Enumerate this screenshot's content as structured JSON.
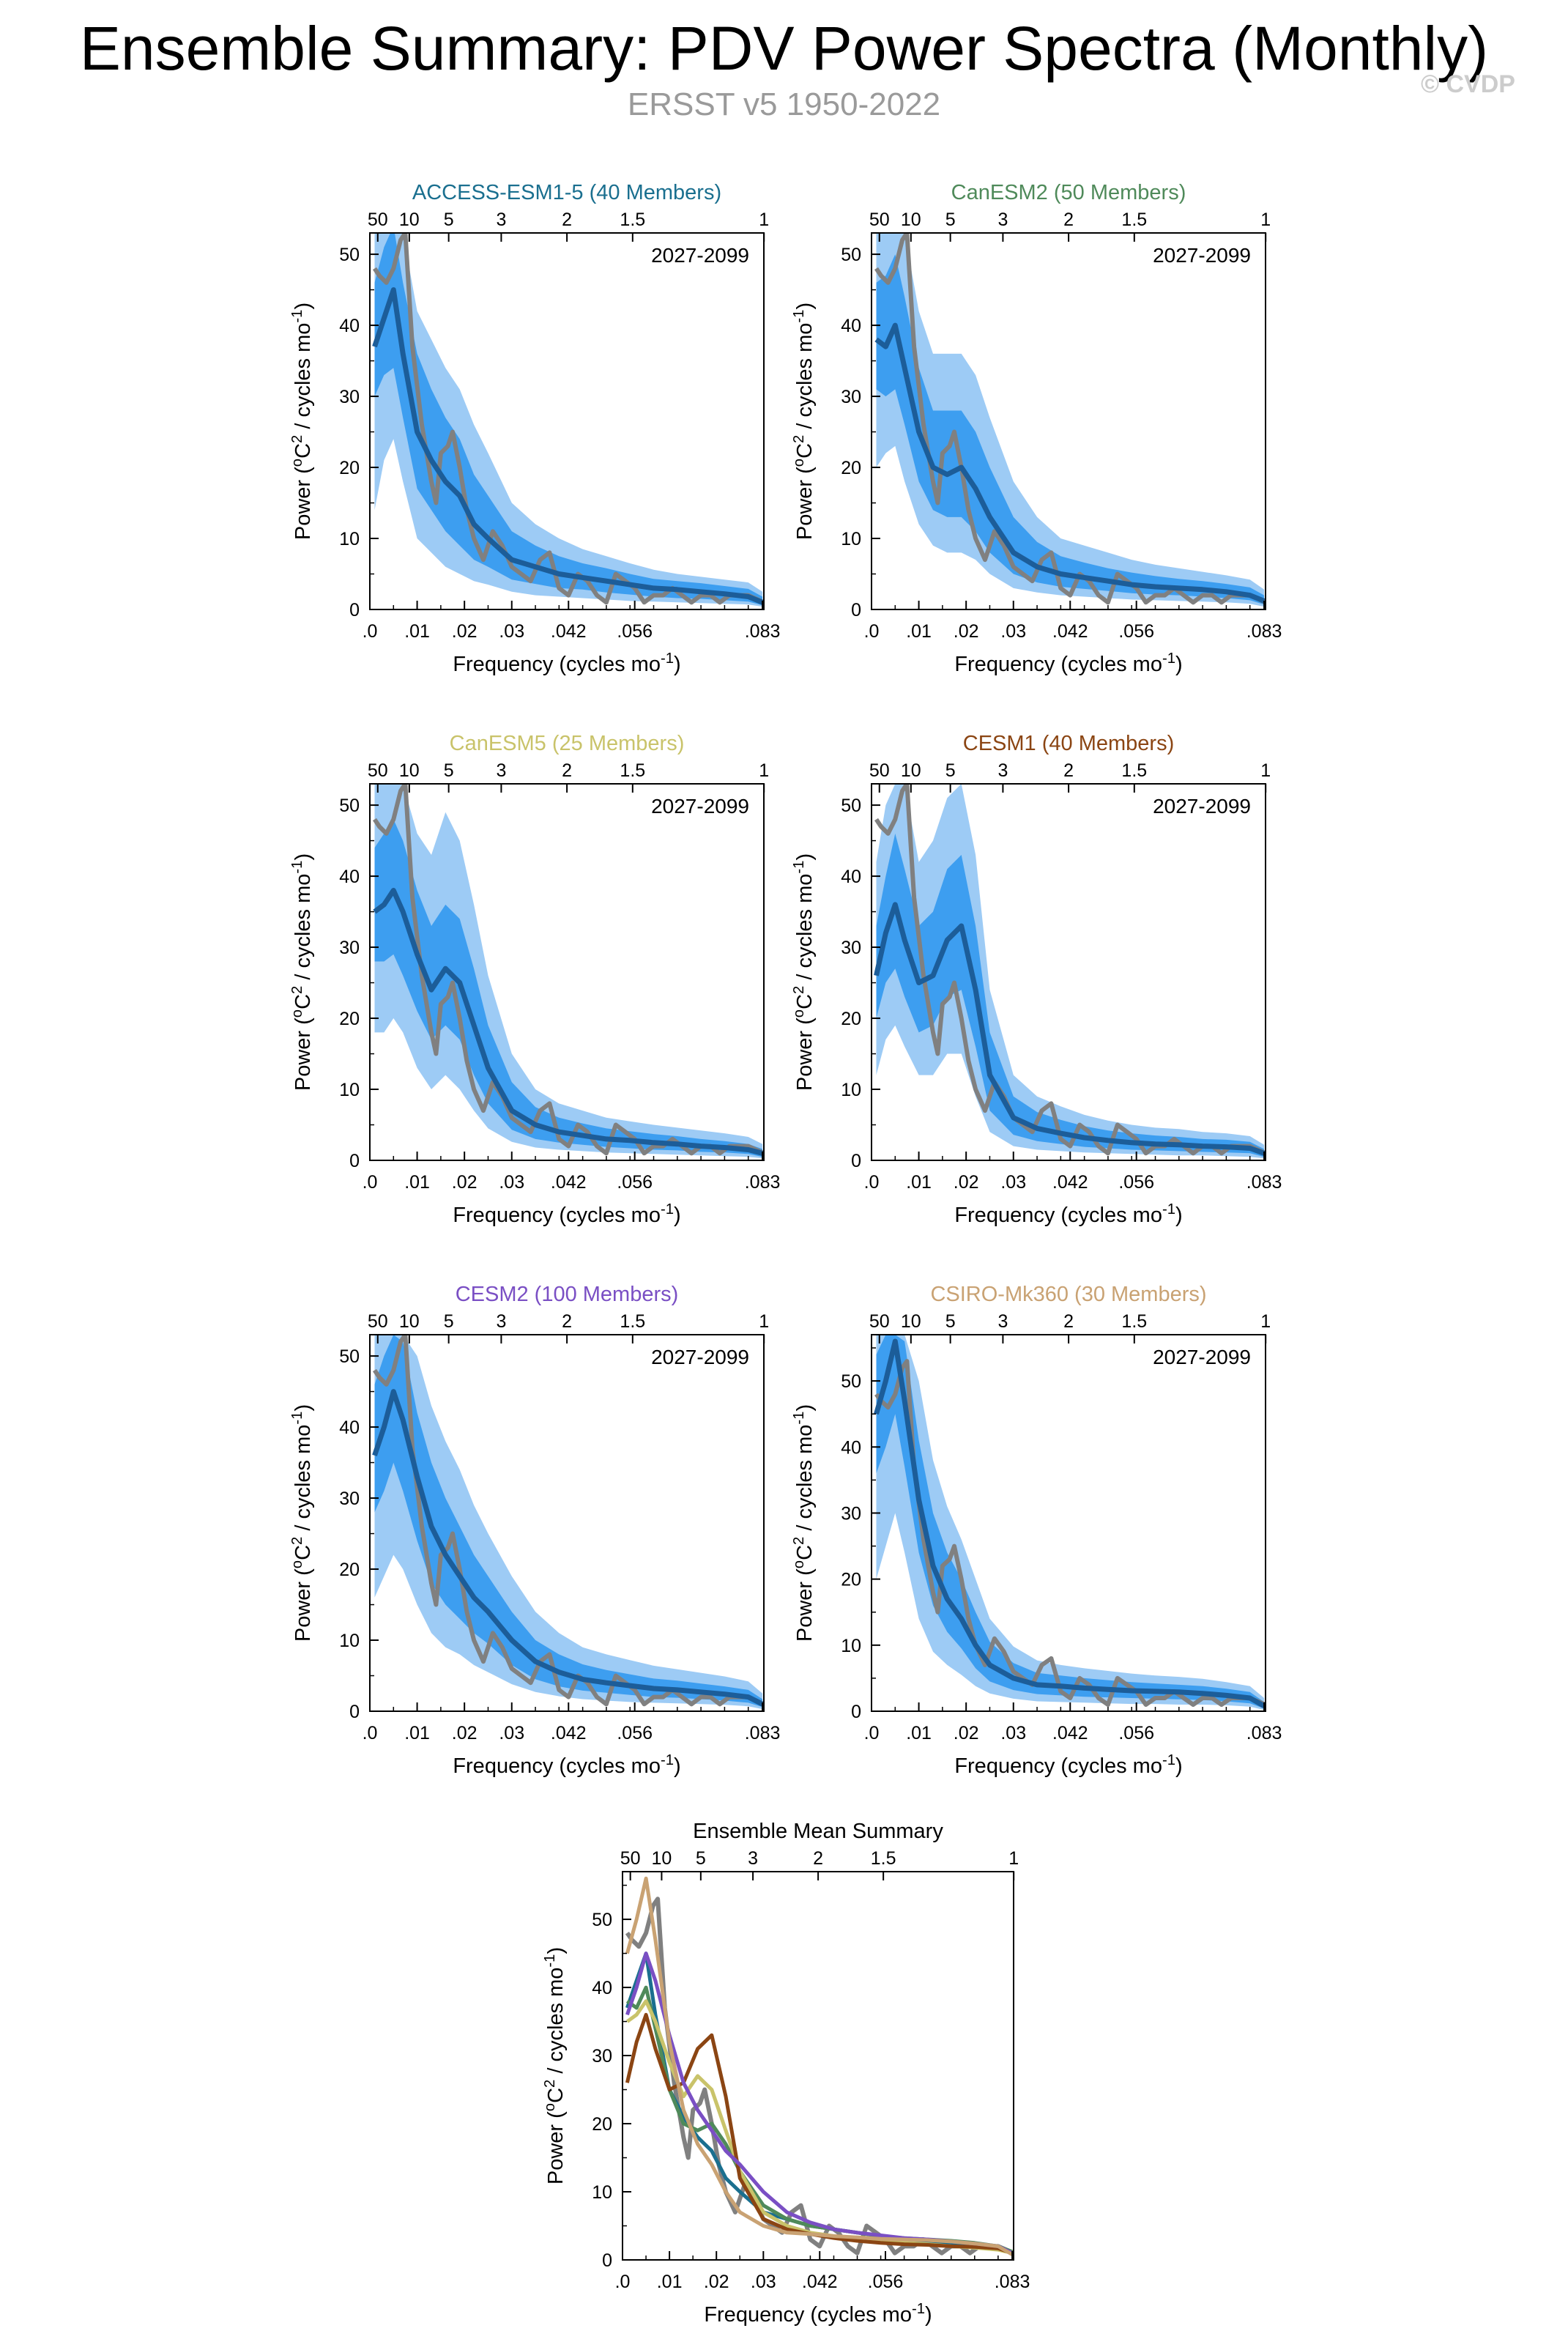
{
  "page": {
    "title": "Ensemble Summary: PDV Power Spectra (Monthly)",
    "subtitle": "ERSST v5 1950-2022",
    "watermark": "© CVDP"
  },
  "colors": {
    "outer_band": "#9dcbf5",
    "inner_band": "#3d9ef0",
    "ensemble_mean": "#1c5d99",
    "observations": "#808080"
  },
  "chart_data": [
    {
      "type": "line",
      "title": "ACCESS-ESM1-5 (40 Members)",
      "title_color": "#1a6f8f",
      "period_label": "2027-2099",
      "xlabel": "Frequency (cycles mo⁻¹)",
      "ylabel": "Power (°C² / cycles mo⁻¹)",
      "xlim": [
        0,
        0.0833
      ],
      "ylim": [
        0,
        53
      ],
      "x_ticks": [
        0,
        0.01,
        0.02,
        0.03,
        0.042,
        0.056,
        0.083
      ],
      "x_tick_labels": [
        ".0",
        ".01",
        ".02",
        ".03",
        ".042",
        ".056",
        ".083"
      ],
      "y_ticks": [
        0,
        10,
        20,
        30,
        40,
        50
      ],
      "top_ticks": [
        50,
        10,
        5,
        3,
        2,
        1.5,
        1
      ],
      "top_tick_labels": [
        "50",
        "10",
        "5",
        "3",
        "2",
        "1.5",
        "1"
      ],
      "x": [
        0.001,
        0.003,
        0.005,
        0.007,
        0.01,
        0.013,
        0.016,
        0.019,
        0.022,
        0.025,
        0.03,
        0.035,
        0.04,
        0.045,
        0.05,
        0.055,
        0.06,
        0.065,
        0.07,
        0.075,
        0.08,
        0.083
      ],
      "mean": [
        37,
        41,
        45,
        36,
        25,
        21,
        18,
        16,
        12,
        10,
        7,
        6,
        5,
        4.5,
        4,
        3.5,
        3,
        2.8,
        2.5,
        2.2,
        1.8,
        1
      ],
      "inner_lo": [
        30,
        33,
        34,
        27,
        17,
        14,
        11,
        9,
        7,
        6,
        4.2,
        3.6,
        3,
        2.8,
        2.4,
        2.1,
        1.8,
        1.6,
        1.5,
        1.3,
        1.1,
        0.6
      ],
      "inner_hi": [
        46,
        51,
        54,
        46,
        36,
        31,
        27,
        24,
        19,
        16,
        11,
        9,
        7.5,
        6.5,
        5.8,
        5,
        4.3,
        4,
        3.7,
        3.3,
        2.9,
        1.8
      ],
      "outer_lo": [
        14,
        21,
        24,
        18,
        10,
        8,
        6,
        5,
        4,
        3.5,
        2.5,
        2,
        1.8,
        1.6,
        1.4,
        1.2,
        1.1,
        1,
        0.9,
        0.8,
        0.7,
        0.4
      ],
      "outer_hi": [
        53,
        53,
        53,
        53,
        42,
        38,
        34,
        31,
        26,
        22,
        15,
        12,
        10,
        8.5,
        7.5,
        6.5,
        5.6,
        5,
        4.6,
        4.2,
        3.8,
        2.5
      ]
    },
    {
      "type": "line",
      "title": "CanESM2 (50 Members)",
      "title_color": "#4f8a5a",
      "period_label": "2027-2099",
      "xlabel": "Frequency (cycles mo⁻¹)",
      "ylabel": "Power (°C² / cycles mo⁻¹)",
      "xlim": [
        0,
        0.0833
      ],
      "ylim": [
        0,
        53
      ],
      "x_ticks": [
        0,
        0.01,
        0.02,
        0.03,
        0.042,
        0.056,
        0.083
      ],
      "x_tick_labels": [
        ".0",
        ".01",
        ".02",
        ".03",
        ".042",
        ".056",
        ".083"
      ],
      "y_ticks": [
        0,
        10,
        20,
        30,
        40,
        50
      ],
      "top_ticks": [
        50,
        10,
        5,
        3,
        2,
        1.5,
        1
      ],
      "top_tick_labels": [
        "50",
        "10",
        "5",
        "3",
        "2",
        "1.5",
        "1"
      ],
      "x": [
        0.001,
        0.003,
        0.005,
        0.007,
        0.01,
        0.013,
        0.016,
        0.019,
        0.022,
        0.025,
        0.03,
        0.035,
        0.04,
        0.045,
        0.05,
        0.055,
        0.06,
        0.065,
        0.07,
        0.075,
        0.08,
        0.083
      ],
      "mean": [
        38,
        37,
        40,
        34,
        25,
        20,
        19,
        20,
        17,
        13,
        8,
        6,
        5,
        4.5,
        4,
        3.5,
        3.2,
        3,
        2.8,
        2.5,
        2,
        1.2
      ],
      "inner_lo": [
        31,
        30,
        31,
        26,
        18,
        14,
        13,
        13,
        11,
        8,
        5,
        3.8,
        3.2,
        2.9,
        2.6,
        2.3,
        2.1,
        2,
        1.8,
        1.6,
        1.3,
        0.7
      ],
      "inner_hi": [
        46,
        47,
        50,
        44,
        34,
        28,
        28,
        28,
        25,
        20,
        13,
        9.5,
        7.5,
        6.6,
        5.8,
        5.2,
        4.7,
        4.3,
        4,
        3.6,
        3.1,
        2
      ],
      "outer_lo": [
        20,
        22,
        23,
        18,
        12,
        9,
        8,
        8,
        7,
        5,
        3,
        2.4,
        2,
        1.8,
        1.6,
        1.4,
        1.3,
        1.2,
        1.1,
        1,
        0.8,
        0.4
      ],
      "outer_hi": [
        53,
        53,
        53,
        53,
        42,
        36,
        36,
        36,
        33,
        27,
        18,
        13,
        10,
        9,
        8,
        7,
        6.3,
        5.8,
        5.3,
        4.8,
        4.2,
        2.8
      ]
    },
    {
      "type": "line",
      "title": "CanESM5 (25 Members)",
      "title_color": "#c9c36a",
      "period_label": "2027-2099",
      "xlabel": "Frequency (cycles mo⁻¹)",
      "ylabel": "Power (°C² / cycles mo⁻¹)",
      "xlim": [
        0,
        0.0833
      ],
      "ylim": [
        0,
        53
      ],
      "x_ticks": [
        0,
        0.01,
        0.02,
        0.03,
        0.042,
        0.056,
        0.083
      ],
      "x_tick_labels": [
        ".0",
        ".01",
        ".02",
        ".03",
        ".042",
        ".056",
        ".083"
      ],
      "y_ticks": [
        0,
        10,
        20,
        30,
        40,
        50
      ],
      "top_ticks": [
        50,
        10,
        5,
        3,
        2,
        1.5,
        1
      ],
      "top_tick_labels": [
        "50",
        "10",
        "5",
        "3",
        "2",
        "1.5",
        "1"
      ],
      "x": [
        0.001,
        0.003,
        0.005,
        0.007,
        0.01,
        0.013,
        0.016,
        0.019,
        0.022,
        0.025,
        0.03,
        0.035,
        0.04,
        0.045,
        0.05,
        0.055,
        0.06,
        0.065,
        0.07,
        0.075,
        0.08,
        0.083
      ],
      "mean": [
        35,
        36,
        38,
        35,
        29,
        24,
        27,
        25,
        19,
        13,
        7,
        5,
        4,
        3.5,
        3,
        2.8,
        2.5,
        2.3,
        2,
        1.8,
        1.5,
        1
      ],
      "inner_lo": [
        28,
        28,
        29,
        26,
        21,
        17,
        19,
        17,
        12,
        8,
        4.3,
        3,
        2.5,
        2.2,
        1.9,
        1.7,
        1.5,
        1.4,
        1.2,
        1.1,
        0.9,
        0.5
      ],
      "inner_hi": [
        44,
        46,
        48,
        45,
        38,
        33,
        36,
        34,
        27,
        19,
        11,
        7.5,
        6,
        5.2,
        4.5,
        4.1,
        3.7,
        3.4,
        3,
        2.7,
        2.3,
        1.6
      ],
      "outer_lo": [
        18,
        18,
        20,
        18,
        13,
        10,
        12,
        10,
        7,
        4.5,
        2.6,
        1.8,
        1.5,
        1.3,
        1.1,
        1,
        0.9,
        0.8,
        0.7,
        0.6,
        0.5,
        0.3
      ],
      "outer_hi": [
        53,
        53,
        53,
        53,
        46,
        43,
        49,
        45,
        36,
        26,
        15,
        10,
        8,
        7,
        6,
        5.5,
        5,
        4.6,
        4.2,
        3.8,
        3.3,
        2.3
      ]
    },
    {
      "type": "line",
      "title": "CESM1 (40 Members)",
      "title_color": "#8b4513",
      "period_label": "2027-2099",
      "xlabel": "Frequency (cycles mo⁻¹)",
      "ylabel": "Power (°C² / cycles mo⁻¹)",
      "xlim": [
        0,
        0.0833
      ],
      "ylim": [
        0,
        53
      ],
      "x_ticks": [
        0,
        0.01,
        0.02,
        0.03,
        0.042,
        0.056,
        0.083
      ],
      "x_tick_labels": [
        ".0",
        ".01",
        ".02",
        ".03",
        ".042",
        ".056",
        ".083"
      ],
      "y_ticks": [
        0,
        10,
        20,
        30,
        40,
        50
      ],
      "top_ticks": [
        50,
        10,
        5,
        3,
        2,
        1.5,
        1
      ],
      "top_tick_labels": [
        "50",
        "10",
        "5",
        "3",
        "2",
        "1.5",
        "1"
      ],
      "x": [
        0.001,
        0.003,
        0.005,
        0.007,
        0.01,
        0.013,
        0.016,
        0.019,
        0.022,
        0.025,
        0.03,
        0.035,
        0.04,
        0.045,
        0.05,
        0.055,
        0.06,
        0.065,
        0.07,
        0.075,
        0.08,
        0.083
      ],
      "mean": [
        26,
        32,
        36,
        31,
        25,
        26,
        31,
        33,
        24,
        12,
        6,
        4.5,
        3.8,
        3.2,
        2.8,
        2.5,
        2.3,
        2.2,
        2,
        1.9,
        1.7,
        1
      ],
      "inner_lo": [
        20,
        25,
        27,
        23,
        18,
        19,
        23,
        24,
        16,
        7,
        3.6,
        2.7,
        2.3,
        1.9,
        1.7,
        1.5,
        1.4,
        1.3,
        1.2,
        1.1,
        1,
        0.5
      ],
      "inner_hi": [
        33,
        40,
        46,
        41,
        33,
        35,
        41,
        43,
        33,
        18,
        9,
        6.8,
        5.7,
        4.8,
        4.2,
        3.8,
        3.5,
        3.3,
        3,
        2.9,
        2.6,
        1.6
      ],
      "outer_lo": [
        12,
        17,
        19,
        16,
        12,
        12,
        15,
        15,
        9,
        4,
        2,
        1.5,
        1.3,
        1.1,
        1,
        0.9,
        0.8,
        0.7,
        0.7,
        0.6,
        0.5,
        0.3
      ],
      "outer_hi": [
        42,
        50,
        53,
        53,
        42,
        45,
        51,
        53,
        43,
        24,
        12,
        9,
        7.6,
        6.4,
        5.6,
        5,
        4.6,
        4.4,
        4,
        3.8,
        3.4,
        2.2
      ]
    },
    {
      "type": "line",
      "title": "CESM2 (100 Members)",
      "title_color": "#7a4fc4",
      "period_label": "2027-2099",
      "xlabel": "Frequency (cycles mo⁻¹)",
      "ylabel": "Power (°C² / cycles mo⁻¹)",
      "xlim": [
        0,
        0.0833
      ],
      "ylim": [
        0,
        53
      ],
      "x_ticks": [
        0,
        0.01,
        0.02,
        0.03,
        0.042,
        0.056,
        0.083
      ],
      "x_tick_labels": [
        ".0",
        ".01",
        ".02",
        ".03",
        ".042",
        ".056",
        ".083"
      ],
      "y_ticks": [
        0,
        10,
        20,
        30,
        40,
        50
      ],
      "top_ticks": [
        50,
        10,
        5,
        3,
        2,
        1.5,
        1
      ],
      "top_tick_labels": [
        "50",
        "10",
        "5",
        "3",
        "2",
        "1.5",
        "1"
      ],
      "x": [
        0.001,
        0.003,
        0.005,
        0.007,
        0.01,
        0.013,
        0.016,
        0.019,
        0.022,
        0.025,
        0.03,
        0.035,
        0.04,
        0.045,
        0.05,
        0.055,
        0.06,
        0.065,
        0.07,
        0.075,
        0.08,
        0.083
      ],
      "mean": [
        36,
        40,
        45,
        41,
        33,
        26,
        22,
        19,
        16,
        14,
        10,
        7,
        5.5,
        4.5,
        4,
        3.6,
        3.2,
        3,
        2.7,
        2.4,
        2,
        1
      ],
      "inner_lo": [
        28,
        31,
        35,
        31,
        24,
        18,
        15,
        13,
        11,
        9.5,
        6.5,
        4.5,
        3.5,
        2.9,
        2.6,
        2.3,
        2,
        1.9,
        1.7,
        1.5,
        1.2,
        0.6
      ],
      "inner_hi": [
        46,
        50,
        53,
        52,
        42,
        35,
        30,
        26,
        22,
        19,
        14,
        10,
        8,
        6.6,
        5.8,
        5.2,
        4.6,
        4.3,
        3.9,
        3.5,
        3,
        1.7
      ],
      "outer_lo": [
        16,
        19,
        22,
        20,
        15,
        11,
        9,
        8,
        6.5,
        5.5,
        3.8,
        2.7,
        2.1,
        1.7,
        1.5,
        1.3,
        1.2,
        1.1,
        1,
        0.9,
        0.7,
        0.3
      ],
      "outer_hi": [
        53,
        53,
        53,
        53,
        50,
        43,
        38,
        34,
        29,
        25,
        19,
        14,
        11,
        9,
        8,
        7.2,
        6.4,
        5.9,
        5.4,
        4.9,
        4.2,
        2.5
      ]
    },
    {
      "type": "line",
      "title": "CSIRO-Mk360 (30 Members)",
      "title_color": "#c9a273",
      "period_label": "2027-2099",
      "xlabel": "Frequency (cycles mo⁻¹)",
      "ylabel": "Power (°C² / cycles mo⁻¹)",
      "xlim": [
        0,
        0.0833
      ],
      "ylim": [
        0,
        57
      ],
      "x_ticks": [
        0,
        0.01,
        0.02,
        0.03,
        0.042,
        0.056,
        0.083
      ],
      "x_tick_labels": [
        ".0",
        ".01",
        ".02",
        ".03",
        ".042",
        ".056",
        ".083"
      ],
      "y_ticks": [
        0,
        10,
        20,
        30,
        40,
        50
      ],
      "top_ticks": [
        50,
        10,
        5,
        3,
        2,
        1.5,
        1
      ],
      "top_tick_labels": [
        "50",
        "10",
        "5",
        "3",
        "2",
        "1.5",
        "1"
      ],
      "x": [
        0.001,
        0.003,
        0.005,
        0.007,
        0.01,
        0.013,
        0.016,
        0.019,
        0.022,
        0.025,
        0.03,
        0.035,
        0.04,
        0.045,
        0.05,
        0.055,
        0.06,
        0.065,
        0.07,
        0.075,
        0.08,
        0.083
      ],
      "mean": [
        45,
        50,
        56,
        47,
        32,
        22,
        17,
        14,
        10,
        7,
        5,
        4,
        3.8,
        3.5,
        3.3,
        3.1,
        3,
        2.9,
        2.7,
        2.4,
        2,
        0.8
      ],
      "inner_lo": [
        36,
        40,
        45,
        37,
        24,
        16,
        12,
        9.5,
        6.5,
        4.5,
        3.2,
        2.6,
        2.4,
        2.2,
        2.1,
        2,
        1.9,
        1.8,
        1.7,
        1.5,
        1.2,
        0.4
      ],
      "inner_hi": [
        54,
        57,
        57,
        56,
        41,
        30,
        24,
        20,
        15,
        10.5,
        7.3,
        5.8,
        5.4,
        5,
        4.7,
        4.4,
        4.2,
        4,
        3.8,
        3.4,
        2.9,
        1.4
      ],
      "outer_lo": [
        20,
        25,
        30,
        24,
        14,
        9,
        7,
        5.5,
        3.8,
        2.7,
        1.9,
        1.5,
        1.4,
        1.3,
        1.2,
        1.1,
        1.1,
        1,
        1,
        0.9,
        0.7,
        0.2
      ],
      "outer_hi": [
        57,
        57,
        57,
        57,
        50,
        38,
        31,
        26,
        20,
        14,
        9.8,
        7.7,
        7,
        6.5,
        6.1,
        5.7,
        5.4,
        5.2,
        4.9,
        4.4,
        3.8,
        2
      ]
    },
    {
      "type": "line",
      "title": "Ensemble Mean Summary",
      "title_color": "#000000",
      "xlabel": "Frequency (cycles mo⁻¹)",
      "ylabel": "Power (°C² / cycles mo⁻¹)",
      "xlim": [
        0,
        0.0833
      ],
      "ylim": [
        0,
        57
      ],
      "x_ticks": [
        0,
        0.01,
        0.02,
        0.03,
        0.042,
        0.056,
        0.083
      ],
      "x_tick_labels": [
        ".0",
        ".01",
        ".02",
        ".03",
        ".042",
        ".056",
        ".083"
      ],
      "y_ticks": [
        0,
        10,
        20,
        30,
        40,
        50
      ],
      "top_ticks": [
        50,
        10,
        5,
        3,
        2,
        1.5,
        1
      ],
      "top_tick_labels": [
        "50",
        "10",
        "5",
        "3",
        "2",
        "1.5",
        "1"
      ],
      "series": [
        {
          "name": "ACCESS-ESM1-5",
          "color": "#1a6f8f",
          "source": 0
        },
        {
          "name": "CanESM2",
          "color": "#4f8a5a",
          "source": 1
        },
        {
          "name": "CanESM5",
          "color": "#c9c36a",
          "source": 2
        },
        {
          "name": "CESM1",
          "color": "#8b4513",
          "source": 3
        },
        {
          "name": "CESM2",
          "color": "#7a4fc4",
          "source": 4
        },
        {
          "name": "CSIRO-Mk360",
          "color": "#c9a273",
          "source": 5
        }
      ]
    }
  ],
  "observations": {
    "name": "ERSST v5",
    "x": [
      0.001,
      0.002,
      0.0035,
      0.005,
      0.0065,
      0.0075,
      0.009,
      0.011,
      0.013,
      0.014,
      0.015,
      0.0165,
      0.0175,
      0.019,
      0.0205,
      0.022,
      0.024,
      0.026,
      0.028,
      0.03,
      0.032,
      0.034,
      0.036,
      0.038,
      0.04,
      0.042,
      0.044,
      0.046,
      0.048,
      0.05,
      0.052,
      0.054,
      0.056,
      0.058,
      0.06,
      0.062,
      0.064,
      0.066,
      0.068,
      0.07,
      0.072,
      0.074,
      0.076,
      0.078,
      0.08,
      0.0833
    ],
    "y": [
      48,
      47,
      46,
      48,
      52,
      53,
      37,
      26,
      18,
      15,
      22,
      23,
      25,
      20,
      14,
      10,
      7,
      11,
      9,
      6,
      5,
      4,
      7,
      8,
      3,
      2,
      5,
      4,
      2,
      1,
      5,
      4,
      3,
      1,
      2,
      2,
      3,
      2,
      1,
      2,
      2,
      1,
      2,
      2,
      2,
      1
    ]
  }
}
